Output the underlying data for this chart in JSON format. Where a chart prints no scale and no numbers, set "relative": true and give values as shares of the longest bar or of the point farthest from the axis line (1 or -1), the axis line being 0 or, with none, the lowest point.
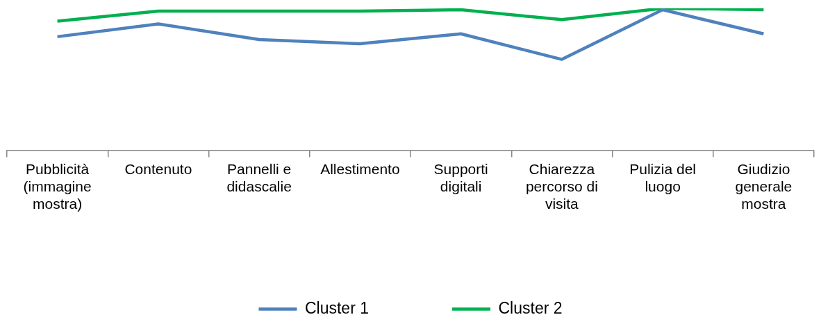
{
  "chart_data": {
    "type": "line",
    "relative": true,
    "categories": [
      "Pubblicità (immagine mostra)",
      "Contenuto",
      "Pannelli e didascalie",
      "Allestimento",
      "Supporti digitali",
      "Chiarezza percorso di visita",
      "Pulizia del luogo",
      "Giudizio generale mostra"
    ],
    "series": [
      {
        "name": "Cluster 1",
        "color": "#4f81bd",
        "values": [
          0.8,
          0.89,
          0.78,
          0.75,
          0.82,
          0.64,
          0.99,
          0.82
        ]
      },
      {
        "name": "Cluster 2",
        "color": "#00b050",
        "values": [
          0.91,
          0.98,
          0.98,
          0.98,
          0.99,
          0.92,
          1,
          0.99
        ]
      }
    ],
    "legend": "bottom",
    "grid": false,
    "marker": "none",
    "line_style": "solid"
  }
}
